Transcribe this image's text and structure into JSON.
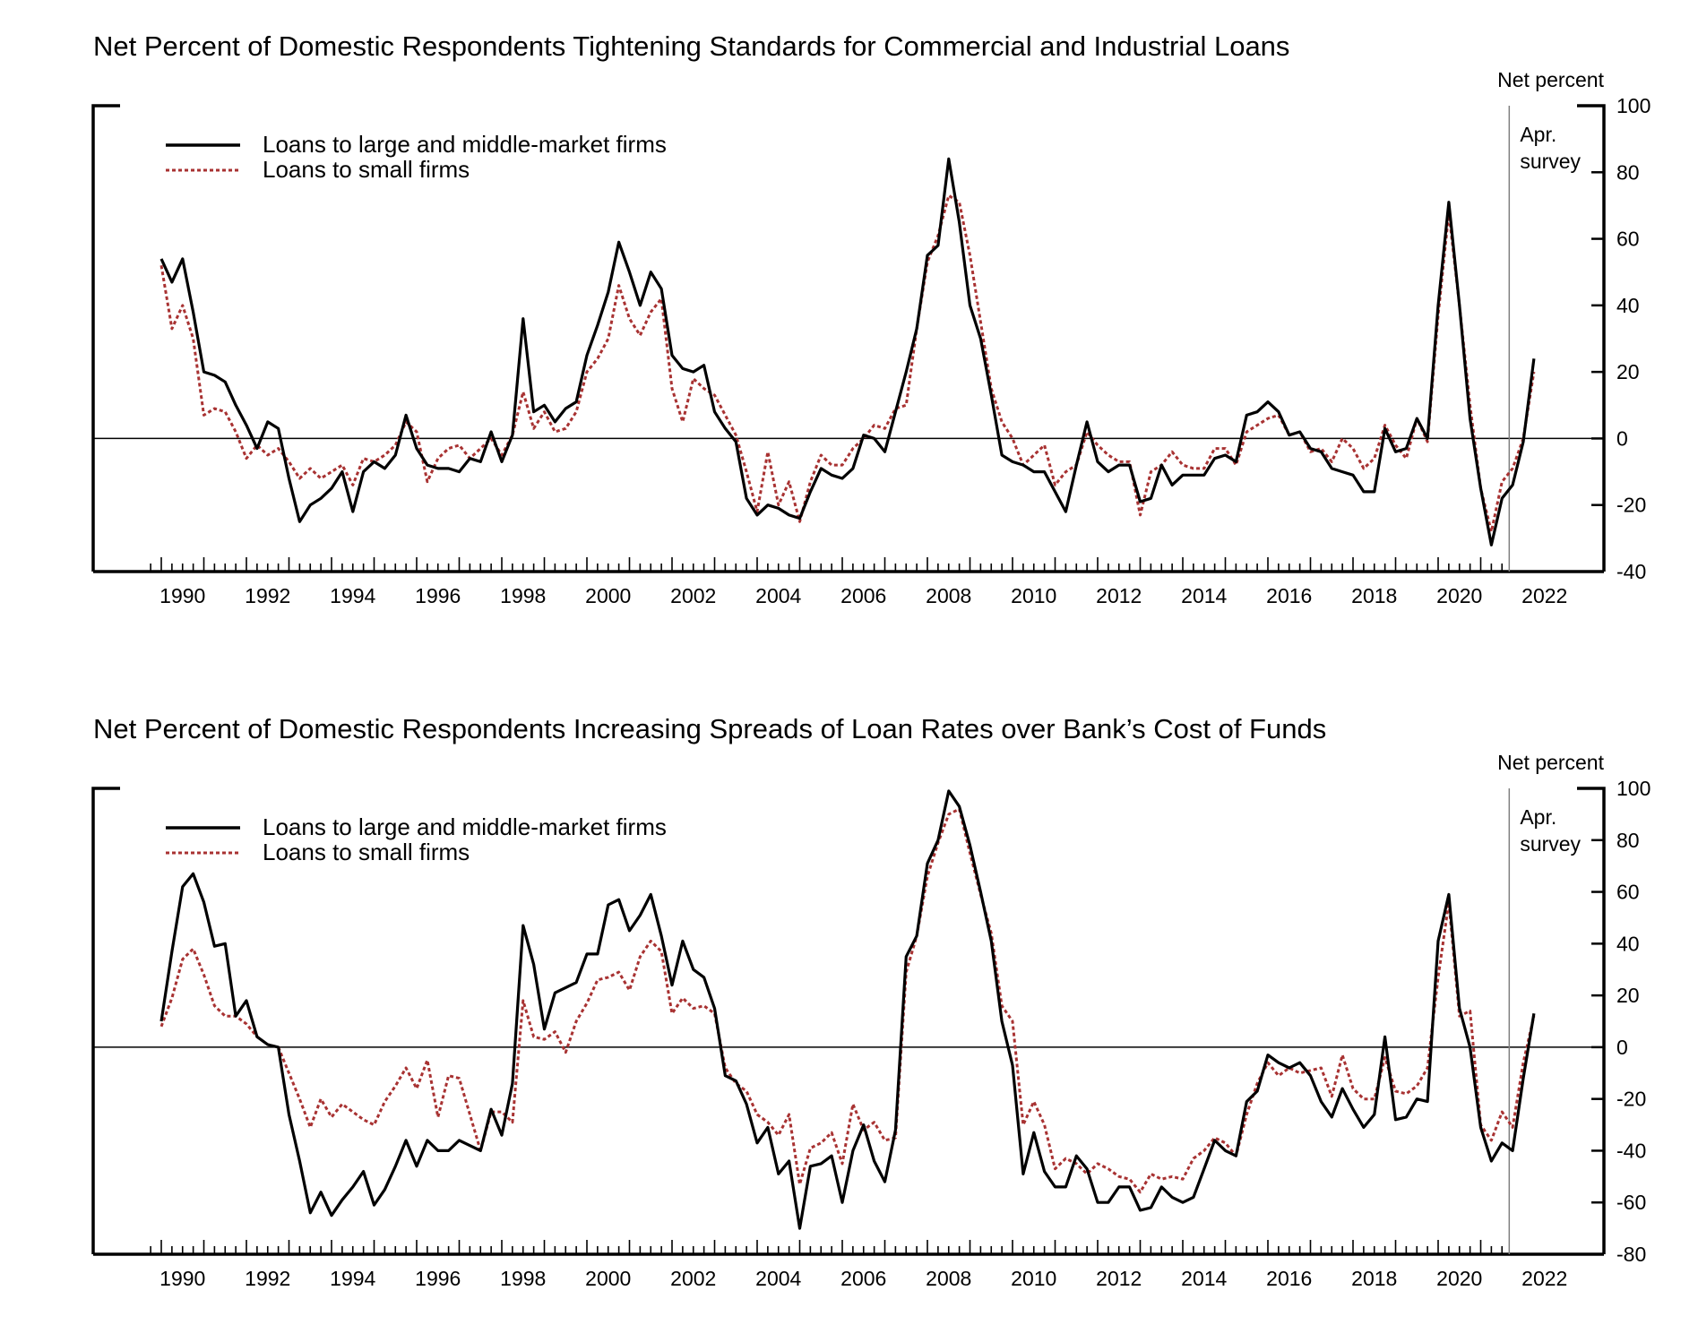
{
  "chart_data": [
    {
      "type": "line",
      "title": "Net Percent of Domestic Respondents Tightening Standards for Commercial and Industrial Loans",
      "unit_label": "Net percent",
      "annotation": [
        "Apr.",
        "survey"
      ],
      "annotation_x": 2021.67,
      "x_ticks": [
        "1990",
        "1992",
        "1994",
        "1996",
        "1998",
        "2000",
        "2002",
        "2004",
        "2006",
        "2008",
        "2010",
        "2012",
        "2014",
        "2016",
        "2018",
        "2020",
        "2022"
      ],
      "xlim": [
        1988.0,
        2025.0
      ],
      "ylim": [
        -40,
        100
      ],
      "y_ticks": [
        "100",
        "80",
        "60",
        "40",
        "20",
        "0",
        "-20",
        "-40"
      ],
      "legend_position": "top-left",
      "series": [
        {
          "name": "Loans to large and middle-market firms",
          "color": "#000000",
          "style": "solid",
          "x_start": 1990.0,
          "x_step": 0.25,
          "values": [
            54,
            47,
            54,
            38,
            20,
            19,
            17,
            10,
            4,
            -3,
            5,
            3,
            -12,
            -25,
            -20,
            -18,
            -15,
            -10,
            -22,
            -10,
            -7,
            -9,
            -5,
            7,
            -3,
            -8,
            -9,
            -9,
            -10,
            -6,
            -7,
            2,
            -7,
            1,
            36,
            8,
            10,
            5,
            9,
            11,
            25,
            34,
            44,
            59,
            50,
            40,
            50,
            45,
            25,
            21,
            20,
            22,
            8,
            3,
            -1,
            -18,
            -23,
            -20,
            -21,
            -23,
            -24,
            -16,
            -9,
            -11,
            -12,
            -9,
            1,
            0,
            -4,
            8,
            20,
            33,
            55,
            58,
            84,
            65,
            40,
            30,
            13,
            -5,
            -7,
            -8,
            -10,
            -10,
            -16,
            -22,
            -8,
            5,
            -7,
            -10,
            -8,
            -8,
            -19,
            -18,
            -8,
            -14,
            -11,
            -11,
            -11,
            -6,
            -5,
            -7,
            7,
            8,
            11,
            8,
            1,
            2,
            -3,
            -4,
            -9,
            -10,
            -11,
            -16,
            -16,
            3,
            -4,
            -3,
            6,
            0,
            40,
            71,
            40,
            6,
            -15,
            -32,
            -18,
            -14,
            -1,
            24
          ]
        },
        {
          "name": "Loans to small firms",
          "color": "#a83232",
          "style": "dotted",
          "x_start": 1990.0,
          "x_step": 0.25,
          "values": [
            52,
            33,
            40,
            30,
            7,
            9,
            8,
            2,
            -6,
            -2,
            -5,
            -3,
            -7,
            -12,
            -9,
            -12,
            -10,
            -8,
            -14,
            -6,
            -7,
            -5,
            -2,
            5,
            2,
            -13,
            -6,
            -3,
            -2,
            -6,
            -3,
            0,
            -5,
            1,
            14,
            3,
            8,
            2,
            3,
            8,
            20,
            24,
            30,
            46,
            36,
            31,
            38,
            42,
            15,
            5,
            18,
            15,
            13,
            7,
            1,
            -10,
            -22,
            -4,
            -20,
            -13,
            -25,
            -13,
            -5,
            -8,
            -8,
            -3,
            0,
            4,
            3,
            9,
            10,
            33,
            53,
            61,
            73,
            71,
            55,
            35,
            15,
            5,
            0,
            -8,
            -5,
            -2,
            -14,
            -10,
            -8,
            2,
            -2,
            -5,
            -7,
            -7,
            -23,
            -10,
            -8,
            -4,
            -8,
            -9,
            -9,
            -3,
            -3,
            -8,
            2,
            4,
            6,
            7,
            1,
            2,
            -4,
            -3,
            -7,
            0,
            -3,
            -9,
            -6,
            4,
            -2,
            -6,
            6,
            -1,
            37,
            68,
            40,
            10,
            -15,
            -28,
            -13,
            -9,
            0,
            20
          ]
        }
      ]
    },
    {
      "type": "line",
      "title": "Net Percent of Domestic Respondents Increasing Spreads of Loan Rates over Bank’s Cost of Funds",
      "unit_label": "Net percent",
      "annotation": [
        "Apr.",
        "survey"
      ],
      "annotation_x": 2021.67,
      "x_ticks": [
        "1990",
        "1992",
        "1994",
        "1996",
        "1998",
        "2000",
        "2002",
        "2004",
        "2006",
        "2008",
        "2010",
        "2012",
        "2014",
        "2016",
        "2018",
        "2020",
        "2022"
      ],
      "xlim": [
        1988.0,
        2025.0
      ],
      "ylim": [
        -80,
        100
      ],
      "y_ticks": [
        "100",
        "80",
        "60",
        "40",
        "20",
        "0",
        "-20",
        "-40",
        "-60",
        "-80"
      ],
      "legend_position": "top-left",
      "series": [
        {
          "name": "Loans to large and middle-market firms",
          "color": "#000000",
          "style": "solid",
          "x_start": 1990.0,
          "x_step": 0.25,
          "values": [
            10,
            37,
            62,
            67,
            56,
            39,
            40,
            12,
            18,
            4,
            1,
            0,
            -26,
            -44,
            -64,
            -56,
            -65,
            -59,
            -54,
            -48,
            -61,
            -55,
            -46,
            -36,
            -46,
            -36,
            -40,
            -40,
            -36,
            -38,
            -40,
            -24,
            -34,
            -14,
            47,
            32,
            7,
            21,
            23,
            25,
            36,
            36,
            55,
            57,
            45,
            51,
            59,
            43,
            24,
            41,
            30,
            27,
            15,
            -11,
            -13,
            -22,
            -37,
            -31,
            -49,
            -44,
            -70,
            -46,
            -45,
            -42,
            -60,
            -40,
            -30,
            -44,
            -52,
            -32,
            35,
            43,
            71,
            80,
            99,
            93,
            78,
            60,
            41,
            10,
            -7,
            -49,
            -33,
            -48,
            -54,
            -54,
            -42,
            -47,
            -60,
            -60,
            -54,
            -54,
            -63,
            -62,
            -54,
            -58,
            -60,
            -58,
            -47,
            -36,
            -40,
            -42,
            -21,
            -17,
            -3,
            -6,
            -8,
            -6,
            -11,
            -21,
            -27,
            -16,
            -24,
            -31,
            -26,
            4,
            -28,
            -27,
            -20,
            -21,
            41,
            59,
            15,
            0,
            -31,
            -44,
            -37,
            -40,
            -12,
            13
          ]
        },
        {
          "name": "Loans to small firms",
          "color": "#a83232",
          "style": "dotted",
          "x_start": 1990.0,
          "x_step": 0.25,
          "values": [
            8,
            19,
            34,
            38,
            28,
            16,
            12,
            12,
            9,
            4,
            1,
            0,
            -10,
            -20,
            -31,
            -20,
            -27,
            -22,
            -25,
            -28,
            -30,
            -21,
            -15,
            -8,
            -16,
            -5,
            -27,
            -11,
            -12,
            -26,
            -40,
            -25,
            -25,
            -29,
            18,
            4,
            3,
            6,
            -2,
            10,
            17,
            26,
            27,
            29,
            22,
            35,
            41,
            37,
            13,
            19,
            15,
            16,
            13,
            -8,
            -14,
            -17,
            -26,
            -29,
            -34,
            -26,
            -53,
            -39,
            -37,
            -33,
            -45,
            -22,
            -32,
            -29,
            -36,
            -35,
            29,
            43,
            66,
            79,
            90,
            92,
            75,
            59,
            44,
            16,
            10,
            -30,
            -21,
            -30,
            -47,
            -43,
            -45,
            -49,
            -45,
            -47,
            -50,
            -51,
            -56,
            -49,
            -51,
            -50,
            -51,
            -43,
            -40,
            -35,
            -37,
            -42,
            -26,
            -14,
            -6,
            -11,
            -8,
            -10,
            -9,
            -8,
            -19,
            -3,
            -16,
            -20,
            -20,
            -4,
            -17,
            -18,
            -15,
            -8,
            27,
            56,
            12,
            14,
            -30,
            -36,
            -25,
            -31,
            -6,
            12
          ]
        }
      ]
    }
  ]
}
